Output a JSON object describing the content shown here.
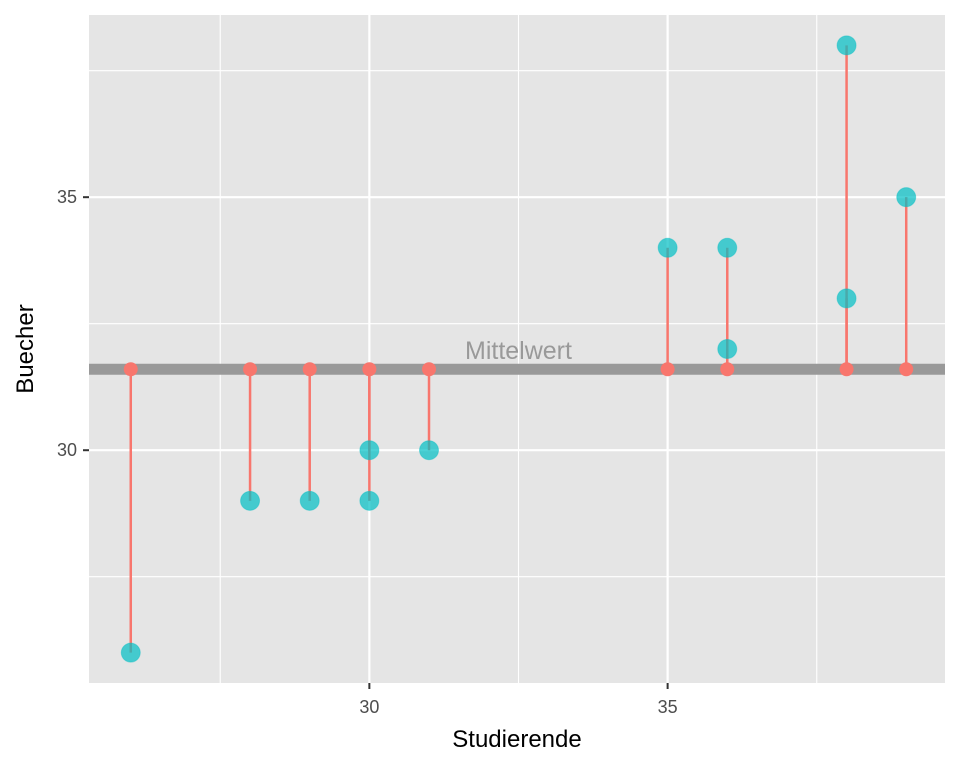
{
  "chart_data": {
    "type": "scatter",
    "xlabel": "Studierende",
    "ylabel": "Buecher",
    "xlim": [
      25.3,
      39.65
    ],
    "ylim": [
      25.4,
      38.6
    ],
    "x_ticks": [
      30,
      35
    ],
    "y_ticks": [
      30,
      35
    ],
    "x_tick_labels": [
      "30",
      "35"
    ],
    "y_tick_labels": [
      "30",
      "35"
    ],
    "mean": 31.6,
    "mean_label": "Mittelwert",
    "points": [
      {
        "x": 26,
        "y": 26
      },
      {
        "x": 28,
        "y": 29
      },
      {
        "x": 29,
        "y": 29
      },
      {
        "x": 30,
        "y": 30
      },
      {
        "x": 30,
        "y": 29
      },
      {
        "x": 31,
        "y": 30
      },
      {
        "x": 35,
        "y": 34
      },
      {
        "x": 36,
        "y": 34
      },
      {
        "x": 36,
        "y": 32
      },
      {
        "x": 38,
        "y": 38
      },
      {
        "x": 38,
        "y": 33
      },
      {
        "x": 39,
        "y": 35
      }
    ],
    "grid": true,
    "colors": {
      "panel": "#E5E5E5",
      "grid": "#FFFFFF",
      "point": "#00BFC4",
      "residual": "#F8766D",
      "mean_line": "#999999",
      "tick_label": "#4D4D4D"
    }
  }
}
